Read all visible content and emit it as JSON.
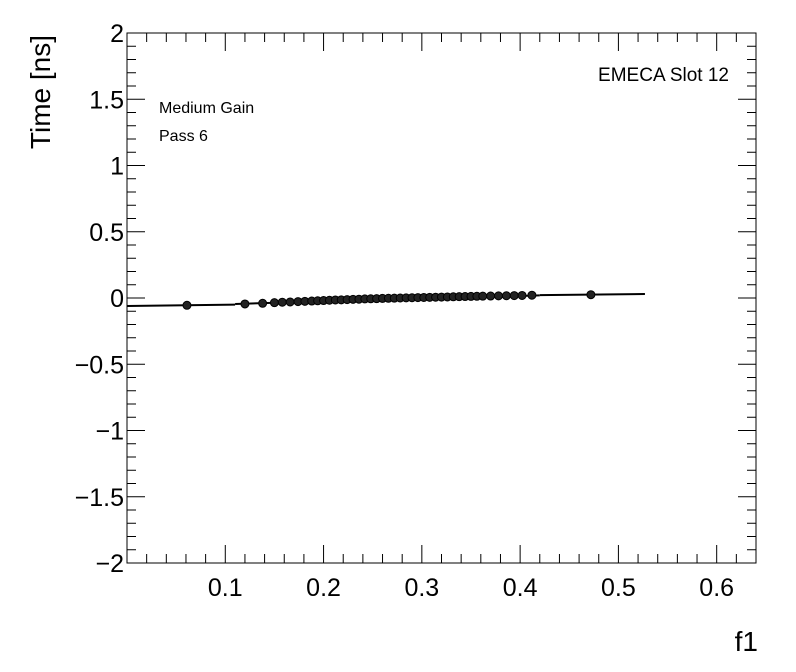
{
  "chart_data": {
    "type": "scatter",
    "xlabel": "f1",
    "ylabel": "Time [ns]",
    "xlim": [
      0.0,
      0.64
    ],
    "ylim": [
      -2,
      2
    ],
    "x_ticks": [
      0.1,
      0.2,
      0.3,
      0.4,
      0.5,
      0.6
    ],
    "x_tick_labels": [
      "0.1",
      "0.2",
      "0.3",
      "0.4",
      "0.5",
      "0.6"
    ],
    "y_ticks": [
      -2,
      -1.5,
      -1,
      -0.5,
      0,
      0.5,
      1,
      1.5,
      2
    ],
    "y_tick_labels": [
      "−2",
      "−1.5",
      "−1",
      "−0.5",
      "0",
      "0.5",
      "1",
      "1.5",
      "2"
    ],
    "grid": false,
    "annotations": {
      "slot": "EMECA Slot 12",
      "gain": "Medium Gain",
      "pass": "Pass 6"
    },
    "points": [
      {
        "x": 0.061,
        "y": -0.055
      },
      {
        "x": 0.12,
        "y": -0.045
      },
      {
        "x": 0.138,
        "y": -0.04
      },
      {
        "x": 0.15,
        "y": -0.035
      },
      {
        "x": 0.158,
        "y": -0.032
      },
      {
        "x": 0.166,
        "y": -0.03
      },
      {
        "x": 0.174,
        "y": -0.027
      },
      {
        "x": 0.181,
        "y": -0.025
      },
      {
        "x": 0.188,
        "y": -0.023
      },
      {
        "x": 0.194,
        "y": -0.021
      },
      {
        "x": 0.2,
        "y": -0.019
      },
      {
        "x": 0.206,
        "y": -0.017
      },
      {
        "x": 0.212,
        "y": -0.015
      },
      {
        "x": 0.218,
        "y": -0.014
      },
      {
        "x": 0.224,
        "y": -0.012
      },
      {
        "x": 0.23,
        "y": -0.01
      },
      {
        "x": 0.236,
        "y": -0.009
      },
      {
        "x": 0.242,
        "y": -0.007
      },
      {
        "x": 0.248,
        "y": -0.006
      },
      {
        "x": 0.254,
        "y": -0.005
      },
      {
        "x": 0.26,
        "y": -0.003
      },
      {
        "x": 0.266,
        "y": -0.002
      },
      {
        "x": 0.272,
        "y": -0.001
      },
      {
        "x": 0.278,
        "y": 0.0
      },
      {
        "x": 0.284,
        "y": 0.001
      },
      {
        "x": 0.29,
        "y": 0.002
      },
      {
        "x": 0.296,
        "y": 0.003
      },
      {
        "x": 0.302,
        "y": 0.004
      },
      {
        "x": 0.308,
        "y": 0.005
      },
      {
        "x": 0.314,
        "y": 0.006
      },
      {
        "x": 0.32,
        "y": 0.007
      },
      {
        "x": 0.326,
        "y": 0.008
      },
      {
        "x": 0.332,
        "y": 0.009
      },
      {
        "x": 0.338,
        "y": 0.01
      },
      {
        "x": 0.344,
        "y": 0.011
      },
      {
        "x": 0.35,
        "y": 0.012
      },
      {
        "x": 0.356,
        "y": 0.013
      },
      {
        "x": 0.362,
        "y": 0.014
      },
      {
        "x": 0.37,
        "y": 0.015
      },
      {
        "x": 0.378,
        "y": 0.016
      },
      {
        "x": 0.386,
        "y": 0.017
      },
      {
        "x": 0.394,
        "y": 0.018
      },
      {
        "x": 0.402,
        "y": 0.019
      },
      {
        "x": 0.412,
        "y": 0.021
      },
      {
        "x": 0.472,
        "y": 0.025
      }
    ],
    "fit_segments": [
      {
        "x": [
          0.0,
          0.11
        ],
        "y": [
          -0.06,
          -0.05
        ]
      },
      {
        "x": [
          0.11,
          0.42
        ],
        "y": [
          -0.045,
          0.02
        ]
      },
      {
        "x": [
          0.42,
          0.527
        ],
        "y": [
          0.022,
          0.03
        ]
      }
    ]
  }
}
